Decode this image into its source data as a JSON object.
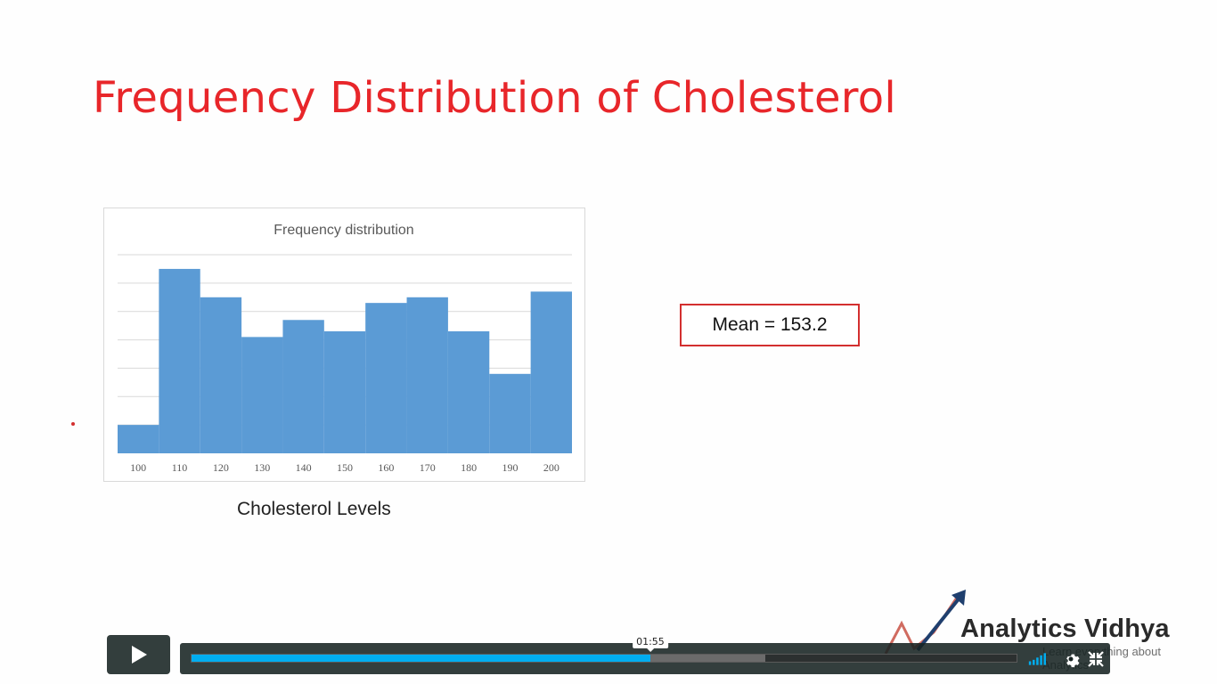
{
  "slide": {
    "title": "Frequency Distribution of Cholesterol",
    "x_axis_caption": "Cholesterol Levels",
    "mean_label": "Mean = 153.2"
  },
  "chart_data": {
    "type": "bar",
    "title": "Frequency distribution",
    "categories": [
      "100",
      "110",
      "120",
      "130",
      "140",
      "150",
      "160",
      "170",
      "180",
      "190",
      "200"
    ],
    "values": [
      1.0,
      6.5,
      5.5,
      4.1,
      4.7,
      4.3,
      5.3,
      5.5,
      4.3,
      2.8,
      5.7
    ],
    "ylim": [
      0,
      7
    ],
    "gridlines": true,
    "bar_color": "#5b9bd5",
    "xlabel": "",
    "ylabel": ""
  },
  "logo": {
    "name": "Analytics Vidhya",
    "tagline": "Learn everything about Analytics"
  },
  "player": {
    "current_time": "01:55",
    "progress": 0.556,
    "buffered": 0.695,
    "accent_color": "#00adef",
    "icons": [
      "play-icon",
      "volume-icon",
      "settings-icon",
      "fullscreen-icon"
    ]
  }
}
